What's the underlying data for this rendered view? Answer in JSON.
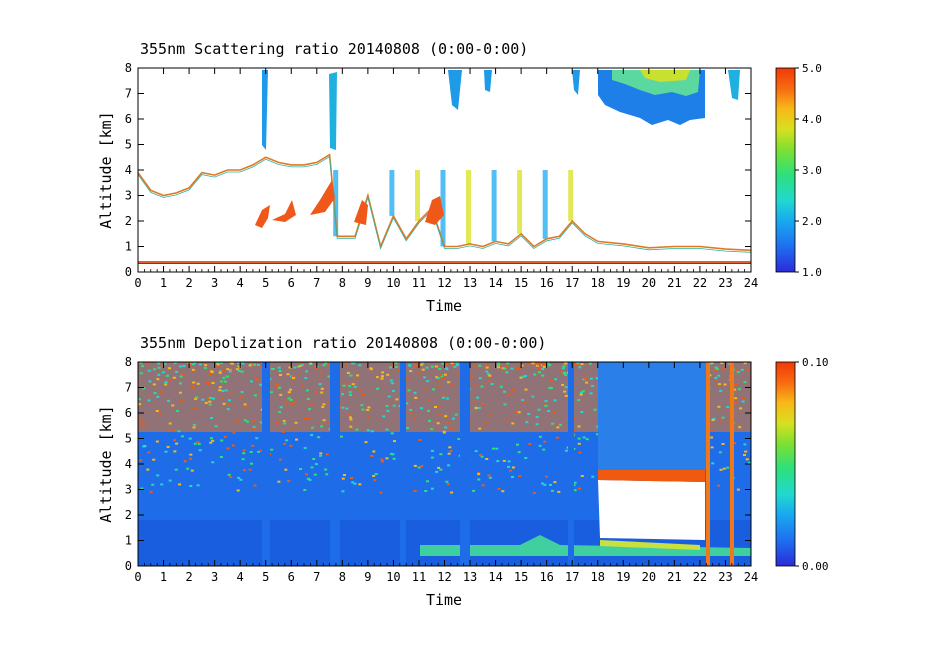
{
  "chart_data": [
    {
      "type": "heatmap",
      "title": "355nm Scattering ratio  20140808 (0:00-0:00)",
      "xlabel": "Time",
      "ylabel": "Altitude [km]",
      "xlim": [
        0,
        24
      ],
      "ylim": [
        0,
        8
      ],
      "xticks": [
        "0",
        "1",
        "2",
        "3",
        "4",
        "5",
        "6",
        "7",
        "8",
        "9",
        "10",
        "11",
        "12",
        "13",
        "14",
        "15",
        "16",
        "17",
        "18",
        "19",
        "20",
        "21",
        "22",
        "23",
        "24"
      ],
      "yticks": [
        "0",
        "1",
        "2",
        "3",
        "4",
        "5",
        "6",
        "7",
        "8"
      ],
      "colorbar": {
        "range": [
          1.0,
          5.0
        ],
        "ticks": [
          "1.0",
          "2.0",
          "3.0",
          "4.0",
          "5.0"
        ]
      },
      "cloud_base_km": [
        [
          0,
          3.9
        ],
        [
          0.5,
          3.2
        ],
        [
          1,
          3.0
        ],
        [
          1.5,
          3.1
        ],
        [
          2,
          3.3
        ],
        [
          2.5,
          3.9
        ],
        [
          3,
          3.8
        ],
        [
          3.5,
          4.0
        ],
        [
          4,
          4.0
        ],
        [
          4.5,
          4.2
        ],
        [
          5,
          4.5
        ],
        [
          5.5,
          4.3
        ],
        [
          6,
          4.2
        ],
        [
          6.5,
          4.2
        ],
        [
          7,
          4.3
        ],
        [
          7.5,
          4.6
        ],
        [
          7.8,
          1.4
        ],
        [
          8.5,
          1.4
        ],
        [
          9,
          3.0
        ],
        [
          9.5,
          1.0
        ],
        [
          10,
          2.2
        ],
        [
          10.5,
          1.3
        ],
        [
          11,
          2.0
        ],
        [
          11.5,
          2.5
        ],
        [
          12,
          1.0
        ],
        [
          12.5,
          1.0
        ],
        [
          13,
          1.1
        ],
        [
          13.5,
          1.0
        ],
        [
          14,
          1.2
        ],
        [
          14.5,
          1.1
        ],
        [
          15,
          1.5
        ],
        [
          15.5,
          1.0
        ],
        [
          16,
          1.3
        ],
        [
          16.5,
          1.4
        ],
        [
          17,
          2.0
        ],
        [
          17.5,
          1.5
        ],
        [
          18,
          1.2
        ],
        [
          19,
          1.1
        ],
        [
          20,
          0.95
        ],
        [
          21,
          1.0
        ],
        [
          22,
          1.0
        ],
        [
          23,
          0.9
        ],
        [
          24,
          0.85
        ]
      ],
      "overlap_layer_km": 0.4
    },
    {
      "type": "heatmap",
      "title": "355nm Depolization ratio  20140808 (0:00-0:00)",
      "xlabel": "Time",
      "ylabel": "Altitude [km]",
      "xlim": [
        0,
        24
      ],
      "ylim": [
        0,
        8
      ],
      "xticks": [
        "0",
        "1",
        "2",
        "3",
        "4",
        "5",
        "6",
        "7",
        "8",
        "9",
        "10",
        "11",
        "12",
        "13",
        "14",
        "15",
        "16",
        "17",
        "18",
        "19",
        "20",
        "21",
        "22",
        "23",
        "24"
      ],
      "yticks": [
        "0",
        "1",
        "2",
        "3",
        "4",
        "5",
        "6",
        "7",
        "8"
      ],
      "colorbar": {
        "range": [
          0.0,
          0.1
        ],
        "ticks": [
          "0.00",
          "0.10"
        ]
      }
    }
  ],
  "colors": {
    "scale": [
      "#2b2bd8",
      "#1f6cf0",
      "#18a8f0",
      "#20d8d0",
      "#2ee07a",
      "#7ee030",
      "#d8e020",
      "#f8b818",
      "#f86a10",
      "#f03a08"
    ]
  }
}
